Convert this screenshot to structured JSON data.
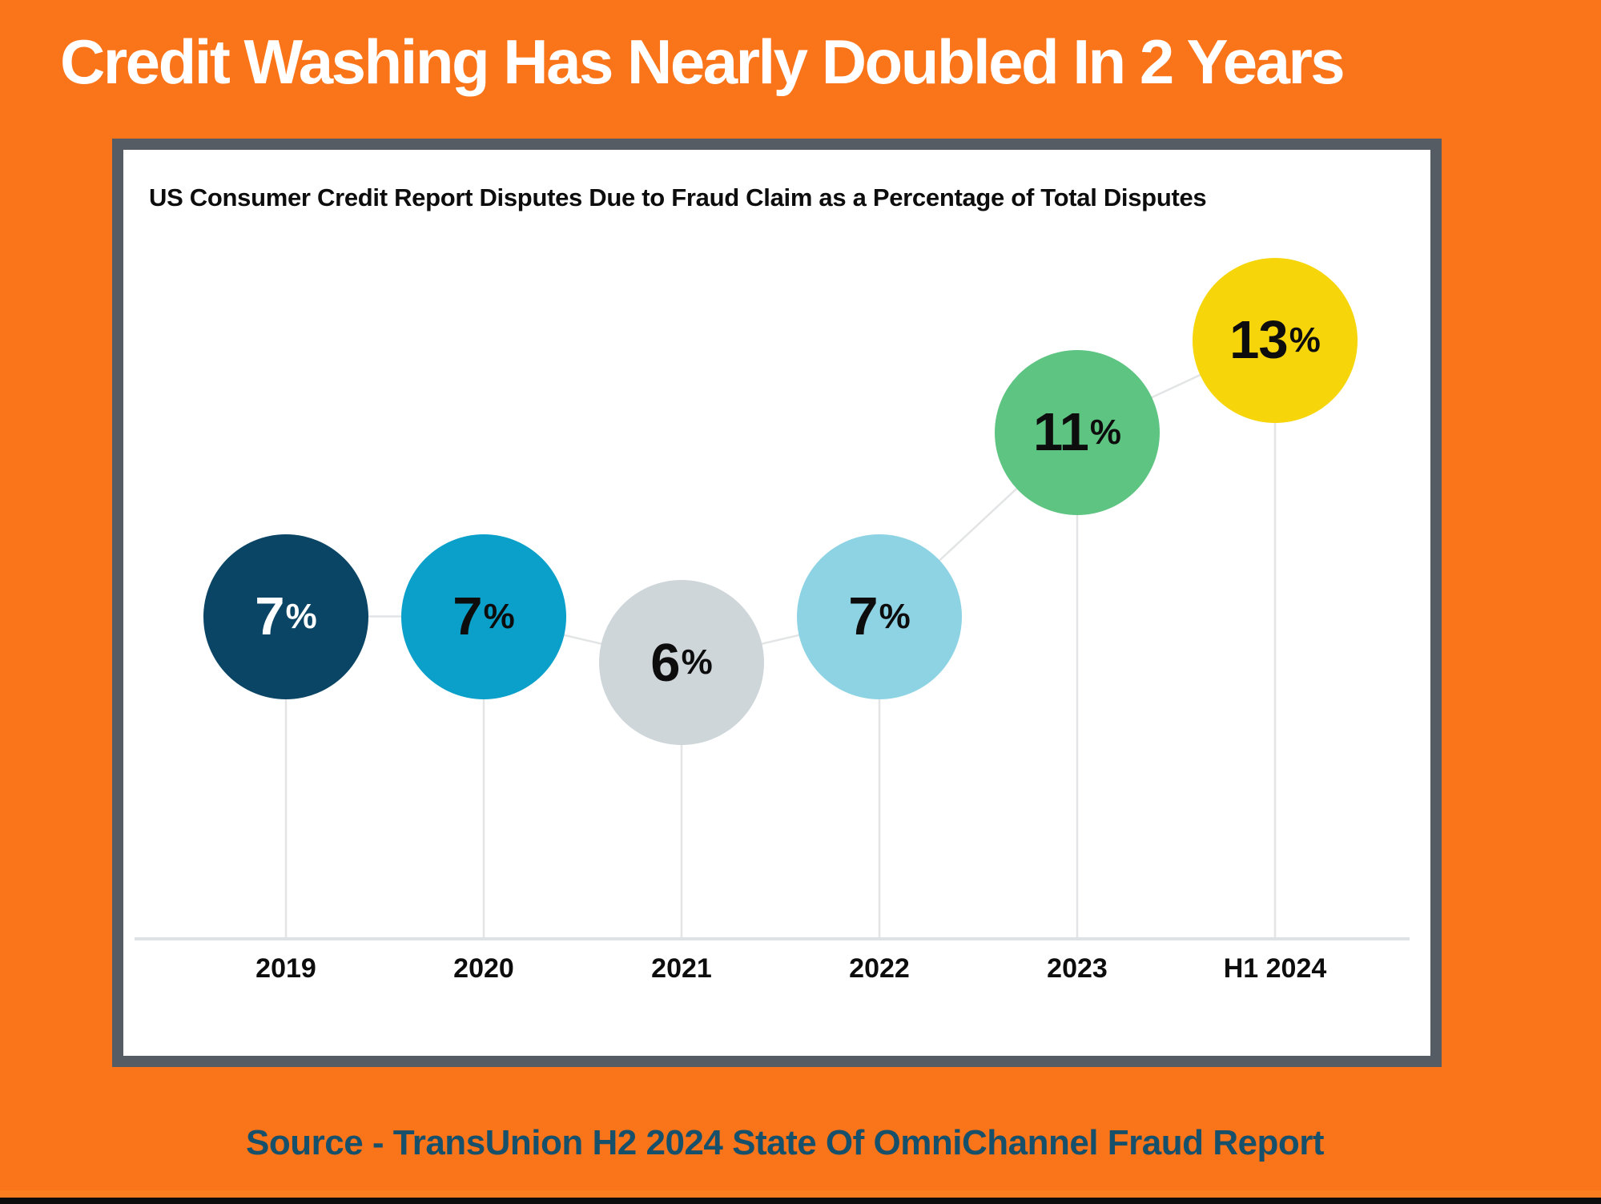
{
  "page": {
    "title": "Credit Washing Has Nearly Doubled In 2 Years",
    "source": "Source - TransUnion H2 2024 State Of OmniChannel Fraud Report",
    "background_color": "#fa7419",
    "title_color": "#ffffff",
    "source_color": "#17506b",
    "card_border_color": "#565c63"
  },
  "chart_data": {
    "type": "scatter",
    "title": "US Consumer Credit Report Disputes Due to Fraud Claim as a Percentage of Total Disputes",
    "categories": [
      "2019",
      "2020",
      "2021",
      "2022",
      "2023",
      "H1 2024"
    ],
    "values": [
      7,
      7,
      6,
      7,
      11,
      13
    ],
    "unit": "%",
    "point_colors": [
      "#0b4565",
      "#0aa0c9",
      "#ced6da",
      "#8ed3e4",
      "#5ec482",
      "#f6d60b"
    ],
    "label_colors": [
      "#ffffff",
      "#0d0d0d",
      "#0d0d0d",
      "#0d0d0d",
      "#0d0d0d",
      "#0d0d0d"
    ],
    "ylim": [
      0,
      14
    ],
    "grid": false,
    "legend": false,
    "connector_color": "#e2e4e5",
    "axis_color": "#dfe2e4",
    "xlabel": "",
    "ylabel": ""
  }
}
